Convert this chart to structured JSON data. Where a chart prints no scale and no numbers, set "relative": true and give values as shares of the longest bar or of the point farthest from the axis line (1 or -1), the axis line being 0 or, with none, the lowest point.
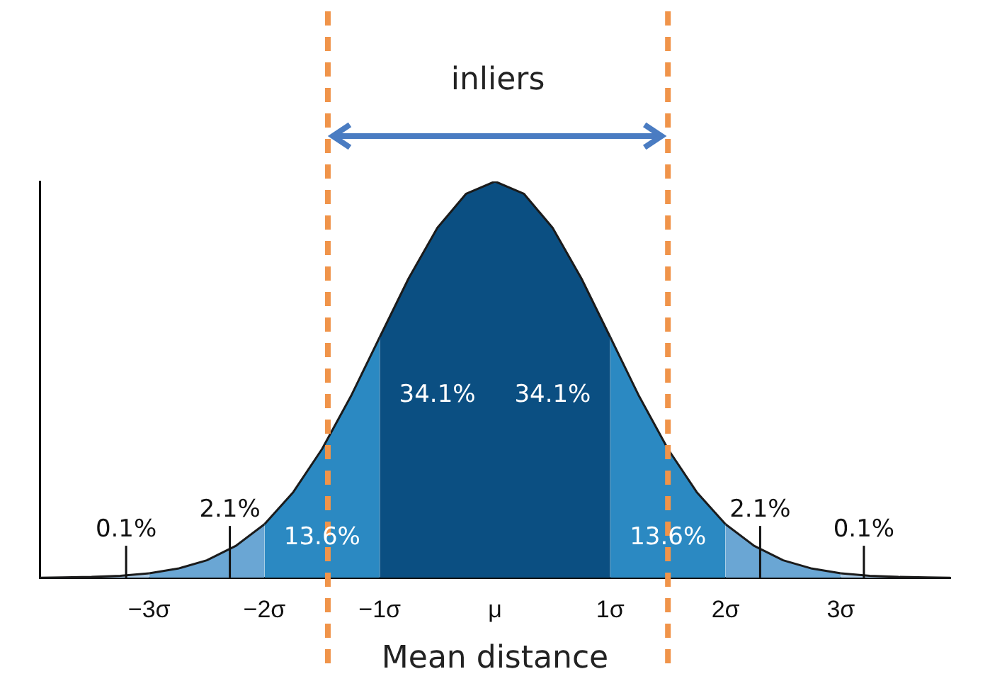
{
  "chart_data": {
    "type": "area",
    "relative": true,
    "xlim": [
      -3.95,
      3.95
    ],
    "xticks": [
      {
        "value": -3,
        "label": "−3σ"
      },
      {
        "value": -2,
        "label": "−2σ"
      },
      {
        "value": -1,
        "label": "−1σ"
      },
      {
        "value": 0,
        "label": "μ"
      },
      {
        "value": 1,
        "label": "1σ"
      },
      {
        "value": 2,
        "label": "2σ"
      },
      {
        "value": 3,
        "label": "3σ"
      }
    ],
    "series": [
      {
        "color": "#0b4f82",
        "x": [
          -1,
          -0.75,
          -0.5,
          -0.25,
          0,
          0.25,
          0.5,
          0.75,
          1
        ],
        "values": [
          0.607,
          0.755,
          0.883,
          0.969,
          1,
          0.969,
          0.883,
          0.755,
          0.607
        ]
      },
      {
        "color": "#2b89c2",
        "x": [
          -2,
          -1.75,
          -1.5,
          -1.25,
          -1
        ],
        "values": [
          0.135,
          0.216,
          0.325,
          0.458,
          0.607
        ]
      },
      {
        "color": "#2b89c2",
        "x": [
          1,
          1.25,
          1.5,
          1.75,
          2
        ],
        "values": [
          0.607,
          0.458,
          0.325,
          0.216,
          0.135
        ]
      },
      {
        "color": "#6aa6d4",
        "x": [
          -3,
          -2.75,
          -2.5,
          -2.25,
          -2
        ],
        "values": [
          0.011,
          0.023,
          0.044,
          0.08,
          0.135
        ]
      },
      {
        "color": "#6aa6d4",
        "x": [
          2,
          2.25,
          2.5,
          2.75,
          3
        ],
        "values": [
          0.135,
          0.08,
          0.044,
          0.023,
          0.011
        ]
      },
      {
        "color": "#a9cbe8",
        "x": [
          -3.95,
          -3.75,
          -3.5,
          -3.25,
          -3
        ],
        "values": [
          0,
          0.001,
          0.002,
          0.005,
          0.011
        ]
      },
      {
        "color": "#a9cbe8",
        "x": [
          3,
          3.25,
          3.5,
          3.75,
          3.95
        ],
        "values": [
          0.011,
          0.005,
          0.002,
          0.001,
          0
        ]
      }
    ],
    "annotations": [
      "34.1%",
      "34.1%",
      "13.6%",
      "13.6%",
      "2.1%",
      "2.1%",
      "0.1%",
      "0.1%",
      "inliers",
      "Mean distance"
    ],
    "ref_lines": [
      {
        "axis": "x",
        "value": -1.45,
        "color": "#f0944a",
        "line_style": "dashed"
      },
      {
        "axis": "x",
        "value": 1.5,
        "color": "#f0944a",
        "line_style": "dashed"
      }
    ],
    "grid": false,
    "legend": false,
    "tick_labels": "x",
    "marker": "none"
  }
}
